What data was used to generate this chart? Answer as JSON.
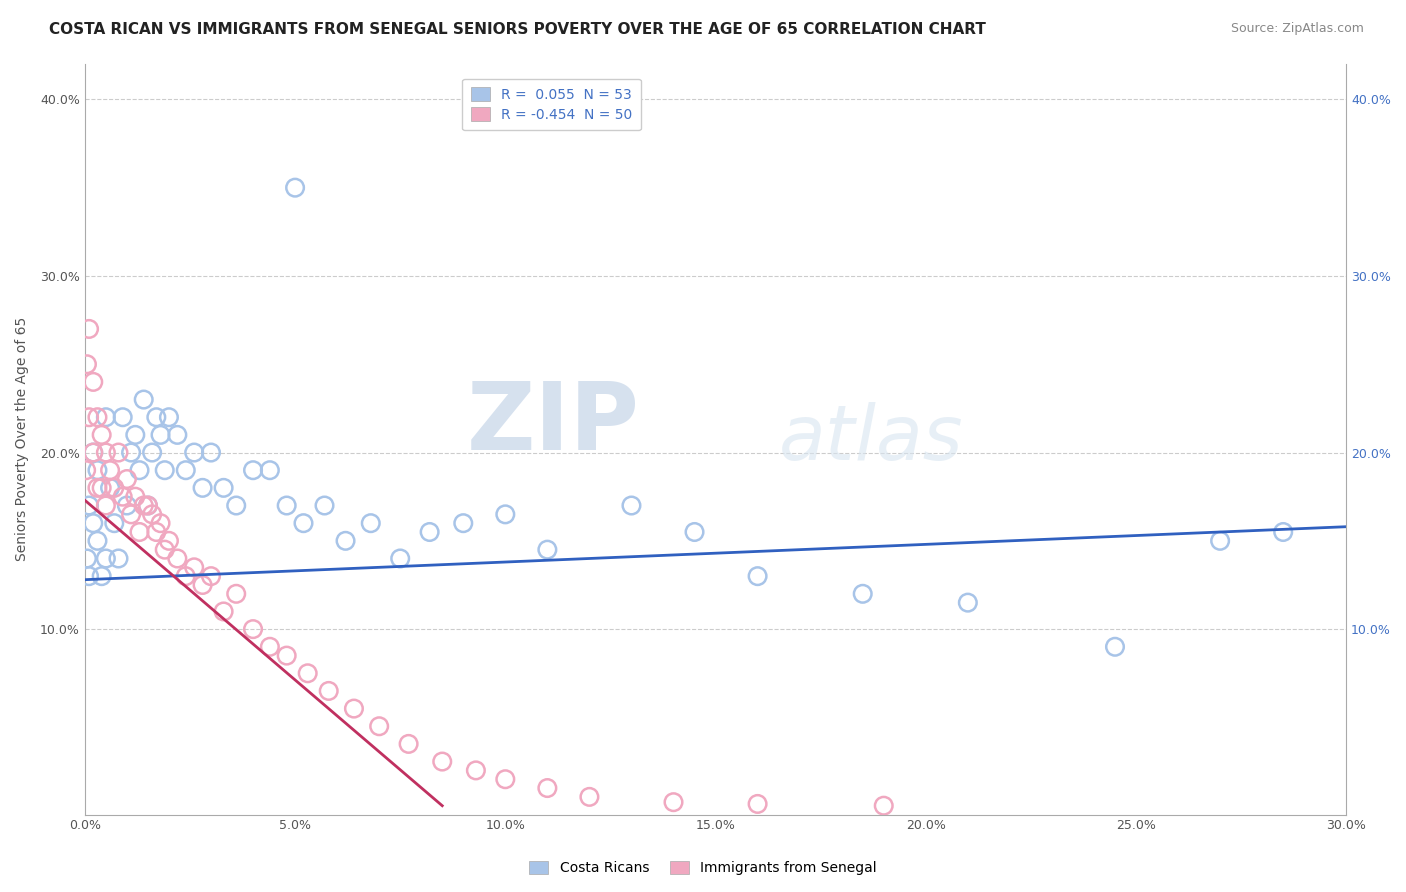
{
  "title": "COSTA RICAN VS IMMIGRANTS FROM SENEGAL SENIORS POVERTY OVER THE AGE OF 65 CORRELATION CHART",
  "source": "Source: ZipAtlas.com",
  "ylabel": "Seniors Poverty Over the Age of 65",
  "xlim": [
    0.0,
    0.3
  ],
  "ylim": [
    -0.005,
    0.42
  ],
  "xticks": [
    0.0,
    0.05,
    0.1,
    0.15,
    0.2,
    0.25,
    0.3
  ],
  "yticks": [
    0.0,
    0.1,
    0.2,
    0.3,
    0.4
  ],
  "blue_color": "#3060c0",
  "pink_color": "#c03060",
  "scatter_blue_color": "#a8c4e8",
  "scatter_pink_color": "#f0a8c0",
  "watermark_zip": "ZIP",
  "watermark_atlas": "atlas",
  "blue_line_x0": 0.0,
  "blue_line_y0": 0.128,
  "blue_line_x1": 0.3,
  "blue_line_y1": 0.158,
  "pink_line_x0": 0.0,
  "pink_line_y0": 0.173,
  "pink_line_x1": 0.085,
  "pink_line_y1": 0.0,
  "background_color": "#ffffff",
  "grid_color": "#cccccc",
  "title_fontsize": 11,
  "axis_fontsize": 10,
  "tick_fontsize": 9,
  "legend_fontsize": 10,
  "blue_scatter_x": [
    0.0005,
    0.001,
    0.001,
    0.002,
    0.002,
    0.003,
    0.003,
    0.004,
    0.005,
    0.005,
    0.006,
    0.007,
    0.008,
    0.009,
    0.01,
    0.011,
    0.012,
    0.013,
    0.014,
    0.015,
    0.016,
    0.017,
    0.018,
    0.019,
    0.02,
    0.022,
    0.024,
    0.026,
    0.028,
    0.03,
    0.033,
    0.036,
    0.04,
    0.044,
    0.048,
    0.052,
    0.057,
    0.062,
    0.068,
    0.075,
    0.082,
    0.09,
    0.1,
    0.11,
    0.13,
    0.145,
    0.16,
    0.185,
    0.21,
    0.245,
    0.27,
    0.285,
    0.05
  ],
  "blue_scatter_y": [
    0.14,
    0.13,
    0.17,
    0.16,
    0.2,
    0.15,
    0.19,
    0.13,
    0.22,
    0.14,
    0.18,
    0.16,
    0.14,
    0.22,
    0.17,
    0.2,
    0.21,
    0.19,
    0.23,
    0.17,
    0.2,
    0.22,
    0.21,
    0.19,
    0.22,
    0.21,
    0.19,
    0.2,
    0.18,
    0.2,
    0.18,
    0.17,
    0.19,
    0.19,
    0.17,
    0.16,
    0.17,
    0.15,
    0.16,
    0.14,
    0.155,
    0.16,
    0.165,
    0.145,
    0.17,
    0.155,
    0.13,
    0.12,
    0.115,
    0.09,
    0.15,
    0.155,
    0.35
  ],
  "pink_scatter_x": [
    0.0003,
    0.0005,
    0.001,
    0.001,
    0.002,
    0.002,
    0.003,
    0.003,
    0.004,
    0.004,
    0.005,
    0.005,
    0.006,
    0.007,
    0.008,
    0.009,
    0.01,
    0.011,
    0.012,
    0.013,
    0.014,
    0.015,
    0.016,
    0.017,
    0.018,
    0.019,
    0.02,
    0.022,
    0.024,
    0.026,
    0.028,
    0.03,
    0.033,
    0.036,
    0.04,
    0.044,
    0.048,
    0.053,
    0.058,
    0.064,
    0.07,
    0.077,
    0.085,
    0.093,
    0.1,
    0.11,
    0.12,
    0.14,
    0.16,
    0.19
  ],
  "pink_scatter_y": [
    0.19,
    0.25,
    0.22,
    0.27,
    0.2,
    0.24,
    0.18,
    0.22,
    0.21,
    0.18,
    0.2,
    0.17,
    0.19,
    0.18,
    0.2,
    0.175,
    0.185,
    0.165,
    0.175,
    0.155,
    0.17,
    0.17,
    0.165,
    0.155,
    0.16,
    0.145,
    0.15,
    0.14,
    0.13,
    0.135,
    0.125,
    0.13,
    0.11,
    0.12,
    0.1,
    0.09,
    0.085,
    0.075,
    0.065,
    0.055,
    0.045,
    0.035,
    0.025,
    0.02,
    0.015,
    0.01,
    0.005,
    0.002,
    0.001,
    0.0
  ]
}
